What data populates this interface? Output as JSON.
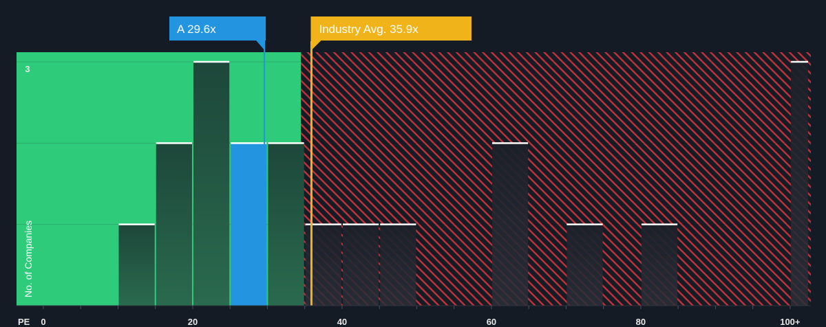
{
  "chart_data": {
    "type": "bar",
    "title": "",
    "xlabel": "PE",
    "ylabel": "No. of Companies",
    "x_bins": [
      {
        "from": 10,
        "to": 15,
        "count": 1
      },
      {
        "from": 15,
        "to": 20,
        "count": 2
      },
      {
        "from": 20,
        "to": 25,
        "count": 3
      },
      {
        "from": 25,
        "to": 30,
        "count": 2,
        "highlight": true
      },
      {
        "from": 30,
        "to": 35,
        "count": 2
      },
      {
        "from": 35,
        "to": 40,
        "count": 1
      },
      {
        "from": 40,
        "to": 45,
        "count": 1
      },
      {
        "from": 45,
        "to": 50,
        "count": 1
      },
      {
        "from": 60,
        "to": 65,
        "count": 2
      },
      {
        "from": 70,
        "to": 75,
        "count": 1
      },
      {
        "from": 80,
        "to": 85,
        "count": 1
      },
      {
        "from": 100,
        "to": 102.5,
        "count": 3
      }
    ],
    "xlim": [
      0,
      102.5
    ],
    "ylim": [
      0,
      3
    ],
    "x_ticks": [
      {
        "value": 0,
        "label": "0"
      },
      {
        "value": 20,
        "label": "20"
      },
      {
        "value": 40,
        "label": "40"
      },
      {
        "value": 60,
        "label": "60"
      },
      {
        "value": 80,
        "label": "80"
      },
      {
        "value": 100,
        "label": "100+"
      }
    ],
    "y_ticks": [
      {
        "value": 3,
        "label": "3"
      }
    ],
    "fair_zone_end": 34.5,
    "company": {
      "label": "A 29.6x",
      "value": 29.6
    },
    "industry": {
      "label": "Industry Avg. 35.9x",
      "value": 35.9
    },
    "colors": {
      "background": "#151b24",
      "fair_zone": "#2ecc7a",
      "over_zone_stripe": "#c0333d",
      "bar_in_zone": "#1e4d3c",
      "bar_over_zone": "#1f232d",
      "company_bar": "#2394e0",
      "company_callout": "#2394e0",
      "industry_line": "#f0b31a",
      "industry_callout": "#f0b31a",
      "bar_cap": "#ffffff"
    }
  }
}
